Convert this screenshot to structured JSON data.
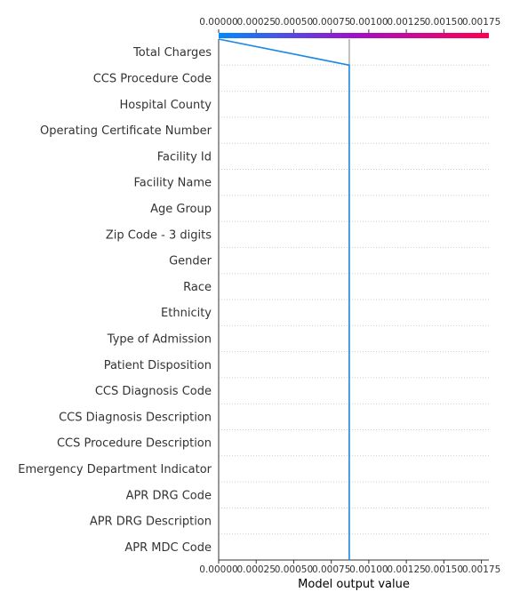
{
  "chart_data": {
    "type": "line",
    "xlabel": "Model output value",
    "xlim": [
      0,
      0.0018
    ],
    "x_ticks": [
      "0.00000",
      "0.00025",
      "0.00050",
      "0.00075",
      "0.00100",
      "0.00125",
      "0.00150",
      "0.00175"
    ],
    "x_tick_values": [
      0,
      0.00025,
      0.0005,
      0.00075,
      0.001,
      0.00125,
      0.0015,
      0.00175
    ],
    "base_value": 0.00087,
    "features": [
      "Total Charges",
      "CCS Procedure Code",
      "Hospital County",
      "Operating Certificate Number",
      "Facility Id",
      "Facility Name",
      "Age Group",
      "Zip Code - 3 digits",
      "Gender",
      "Race",
      "Ethnicity",
      "Type of Admission",
      "Patient Disposition",
      "CCS Diagnosis Code",
      "CCS Diagnosis Description",
      "CCS Procedure Description",
      "Emergency Department Indicator",
      "APR DRG Code",
      "APR DRG Description",
      "APR MDC Code"
    ],
    "series": [
      {
        "values": [
          0.00087,
          0.00087,
          0.00087,
          0.00087,
          0.00087,
          0.00087,
          0.00087,
          0.00087,
          0.00087,
          0.00087,
          0.00087,
          0.00087,
          0.00087,
          0.00087,
          0.00087,
          0.00087,
          0.00087,
          0.00087,
          0.00087,
          0.00087,
          0.0
        ],
        "color": "#1e88e5"
      }
    ],
    "colorbar": [
      "#008bfb",
      "#ff0052"
    ],
    "grid": "dotted-horizontal",
    "legend": "none"
  }
}
